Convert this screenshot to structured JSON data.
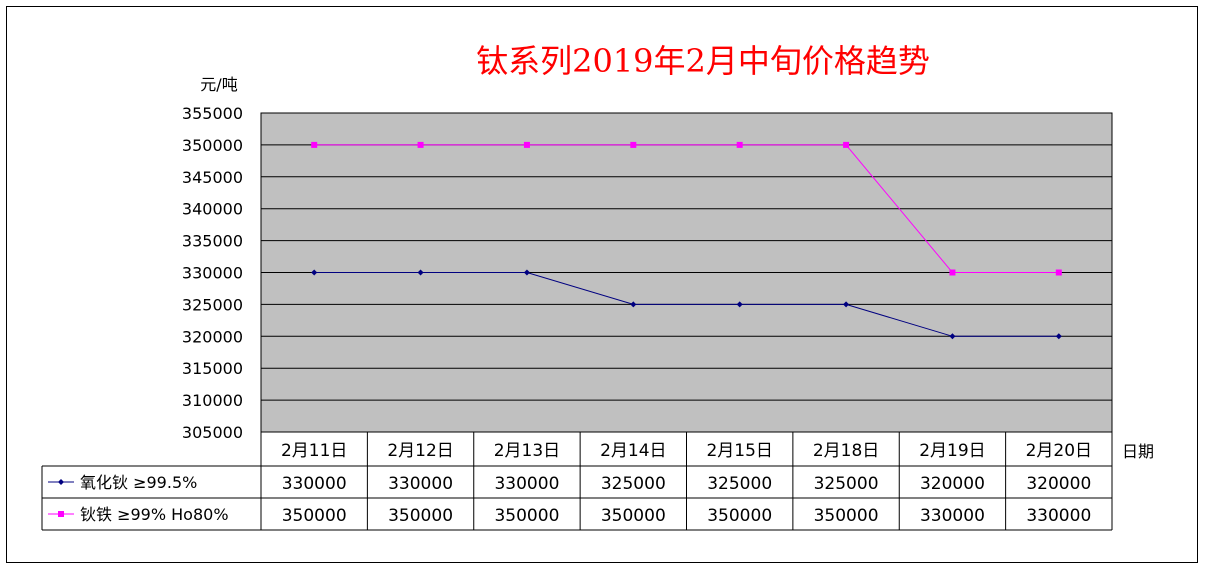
{
  "chart_data": {
    "type": "line",
    "title": "钛系列2019年2月中旬价格趋势",
    "ylabel": "元/吨",
    "xlabel": "日期",
    "ylim": [
      305000,
      355000
    ],
    "ytick_step": 5000,
    "yticks": [
      "355000",
      "350000",
      "345000",
      "340000",
      "335000",
      "330000",
      "325000",
      "320000",
      "315000",
      "310000",
      "305000"
    ],
    "categories": [
      "2月11日",
      "2月12日",
      "2月13日",
      "2月14日",
      "2月15日",
      "2月18日",
      "2月19日",
      "2月20日"
    ],
    "grid": true,
    "series": [
      {
        "name": "氧化钬 ≥99.5%",
        "marker": "diamond",
        "values": [
          330000,
          330000,
          330000,
          325000,
          325000,
          325000,
          320000,
          320000
        ]
      },
      {
        "name": "钬铁 ≥99% Ho80%",
        "marker": "square",
        "values": [
          350000,
          350000,
          350000,
          350000,
          350000,
          350000,
          330000,
          330000
        ]
      }
    ]
  },
  "colors": {
    "title": "#ff0000",
    "plot_bg": "#c0c0c0",
    "series": [
      "#000080",
      "#ff00ff"
    ]
  }
}
